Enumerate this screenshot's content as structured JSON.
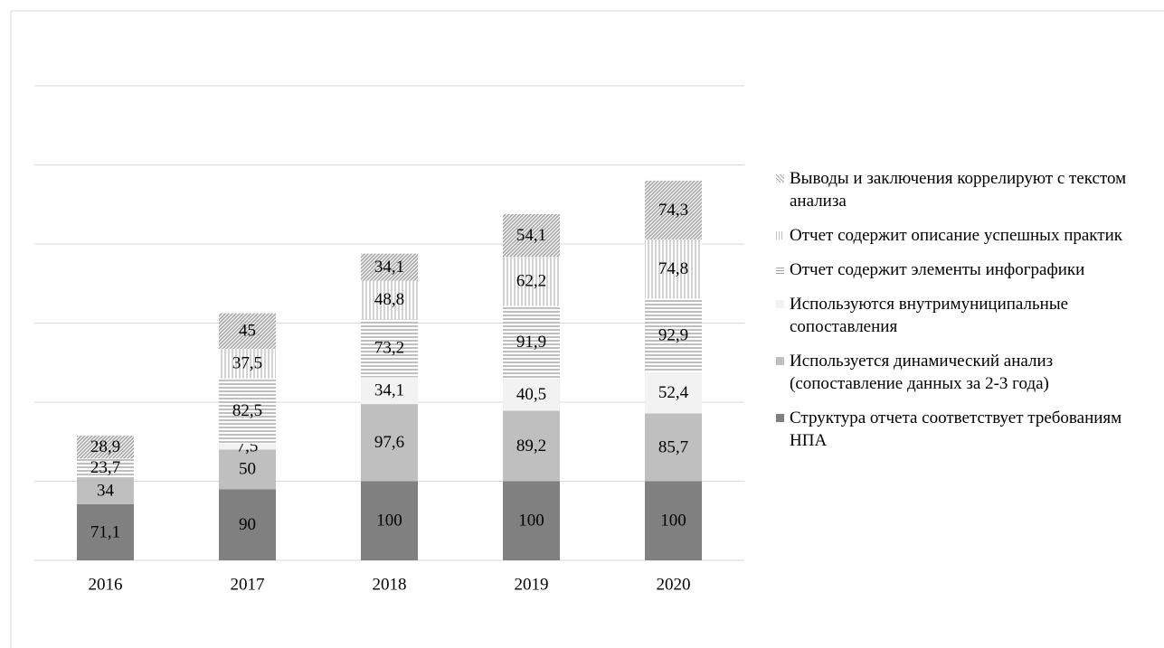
{
  "chart_data": {
    "type": "stacked_bar",
    "categories": [
      "2016",
      "2017",
      "2018",
      "2019",
      "2020"
    ],
    "ylim": [
      0,
      600
    ],
    "yticks": [
      0,
      100,
      200,
      300,
      400,
      500,
      600
    ],
    "grid": true,
    "legend": "right",
    "series": [
      {
        "name": "Структура отчета соответствует требованиям НПА",
        "color": "#808080",
        "pattern": "solid",
        "values": [
          71.1,
          90,
          100,
          100,
          100
        ],
        "value_labels": [
          "71,1",
          "90",
          "100",
          "100",
          "100"
        ]
      },
      {
        "name": "Используется динамический анализ (сопоставление данных за 2-3 года)",
        "color": "#bfbfbf",
        "pattern": "solid",
        "values": [
          34,
          50,
          97.6,
          89.2,
          85.7
        ],
        "value_labels": [
          "34",
          "50",
          "97,6",
          "89,2",
          "85,7"
        ]
      },
      {
        "name": "Используются внутримуниципальные сопоставления",
        "color": "#f2f2f2",
        "pattern": "solid",
        "values": [
          null,
          7.5,
          34.1,
          40.5,
          52.4
        ],
        "value_labels": [
          null,
          "7,5",
          "34,1",
          "40,5",
          "52,4"
        ]
      },
      {
        "name": "Отчет содержит элементы инфографики",
        "color": "#a6a6a6",
        "pattern": "horizontal",
        "values": [
          23.7,
          82.5,
          73.2,
          91.9,
          92.9
        ],
        "value_labels": [
          "23,7",
          "82,5",
          "73,2",
          "91,9",
          "92,9"
        ]
      },
      {
        "name": "Отчет содержит описание успешных практик",
        "color": "#bfbfbf",
        "pattern": "vertical",
        "values": [
          null,
          37.5,
          48.8,
          62.2,
          74.8
        ],
        "value_labels": [
          null,
          "37,5",
          "48,8",
          "62,2",
          "74,8"
        ]
      },
      {
        "name": "Выводы и заключения коррелируют с текстом анализа",
        "color": "#a6a6a6",
        "pattern": "diagonal",
        "values": [
          28.9,
          45,
          34.1,
          54.1,
          74.3
        ],
        "value_labels": [
          "28,9",
          "45",
          "34,1",
          "54,1",
          "74,3"
        ]
      }
    ]
  }
}
